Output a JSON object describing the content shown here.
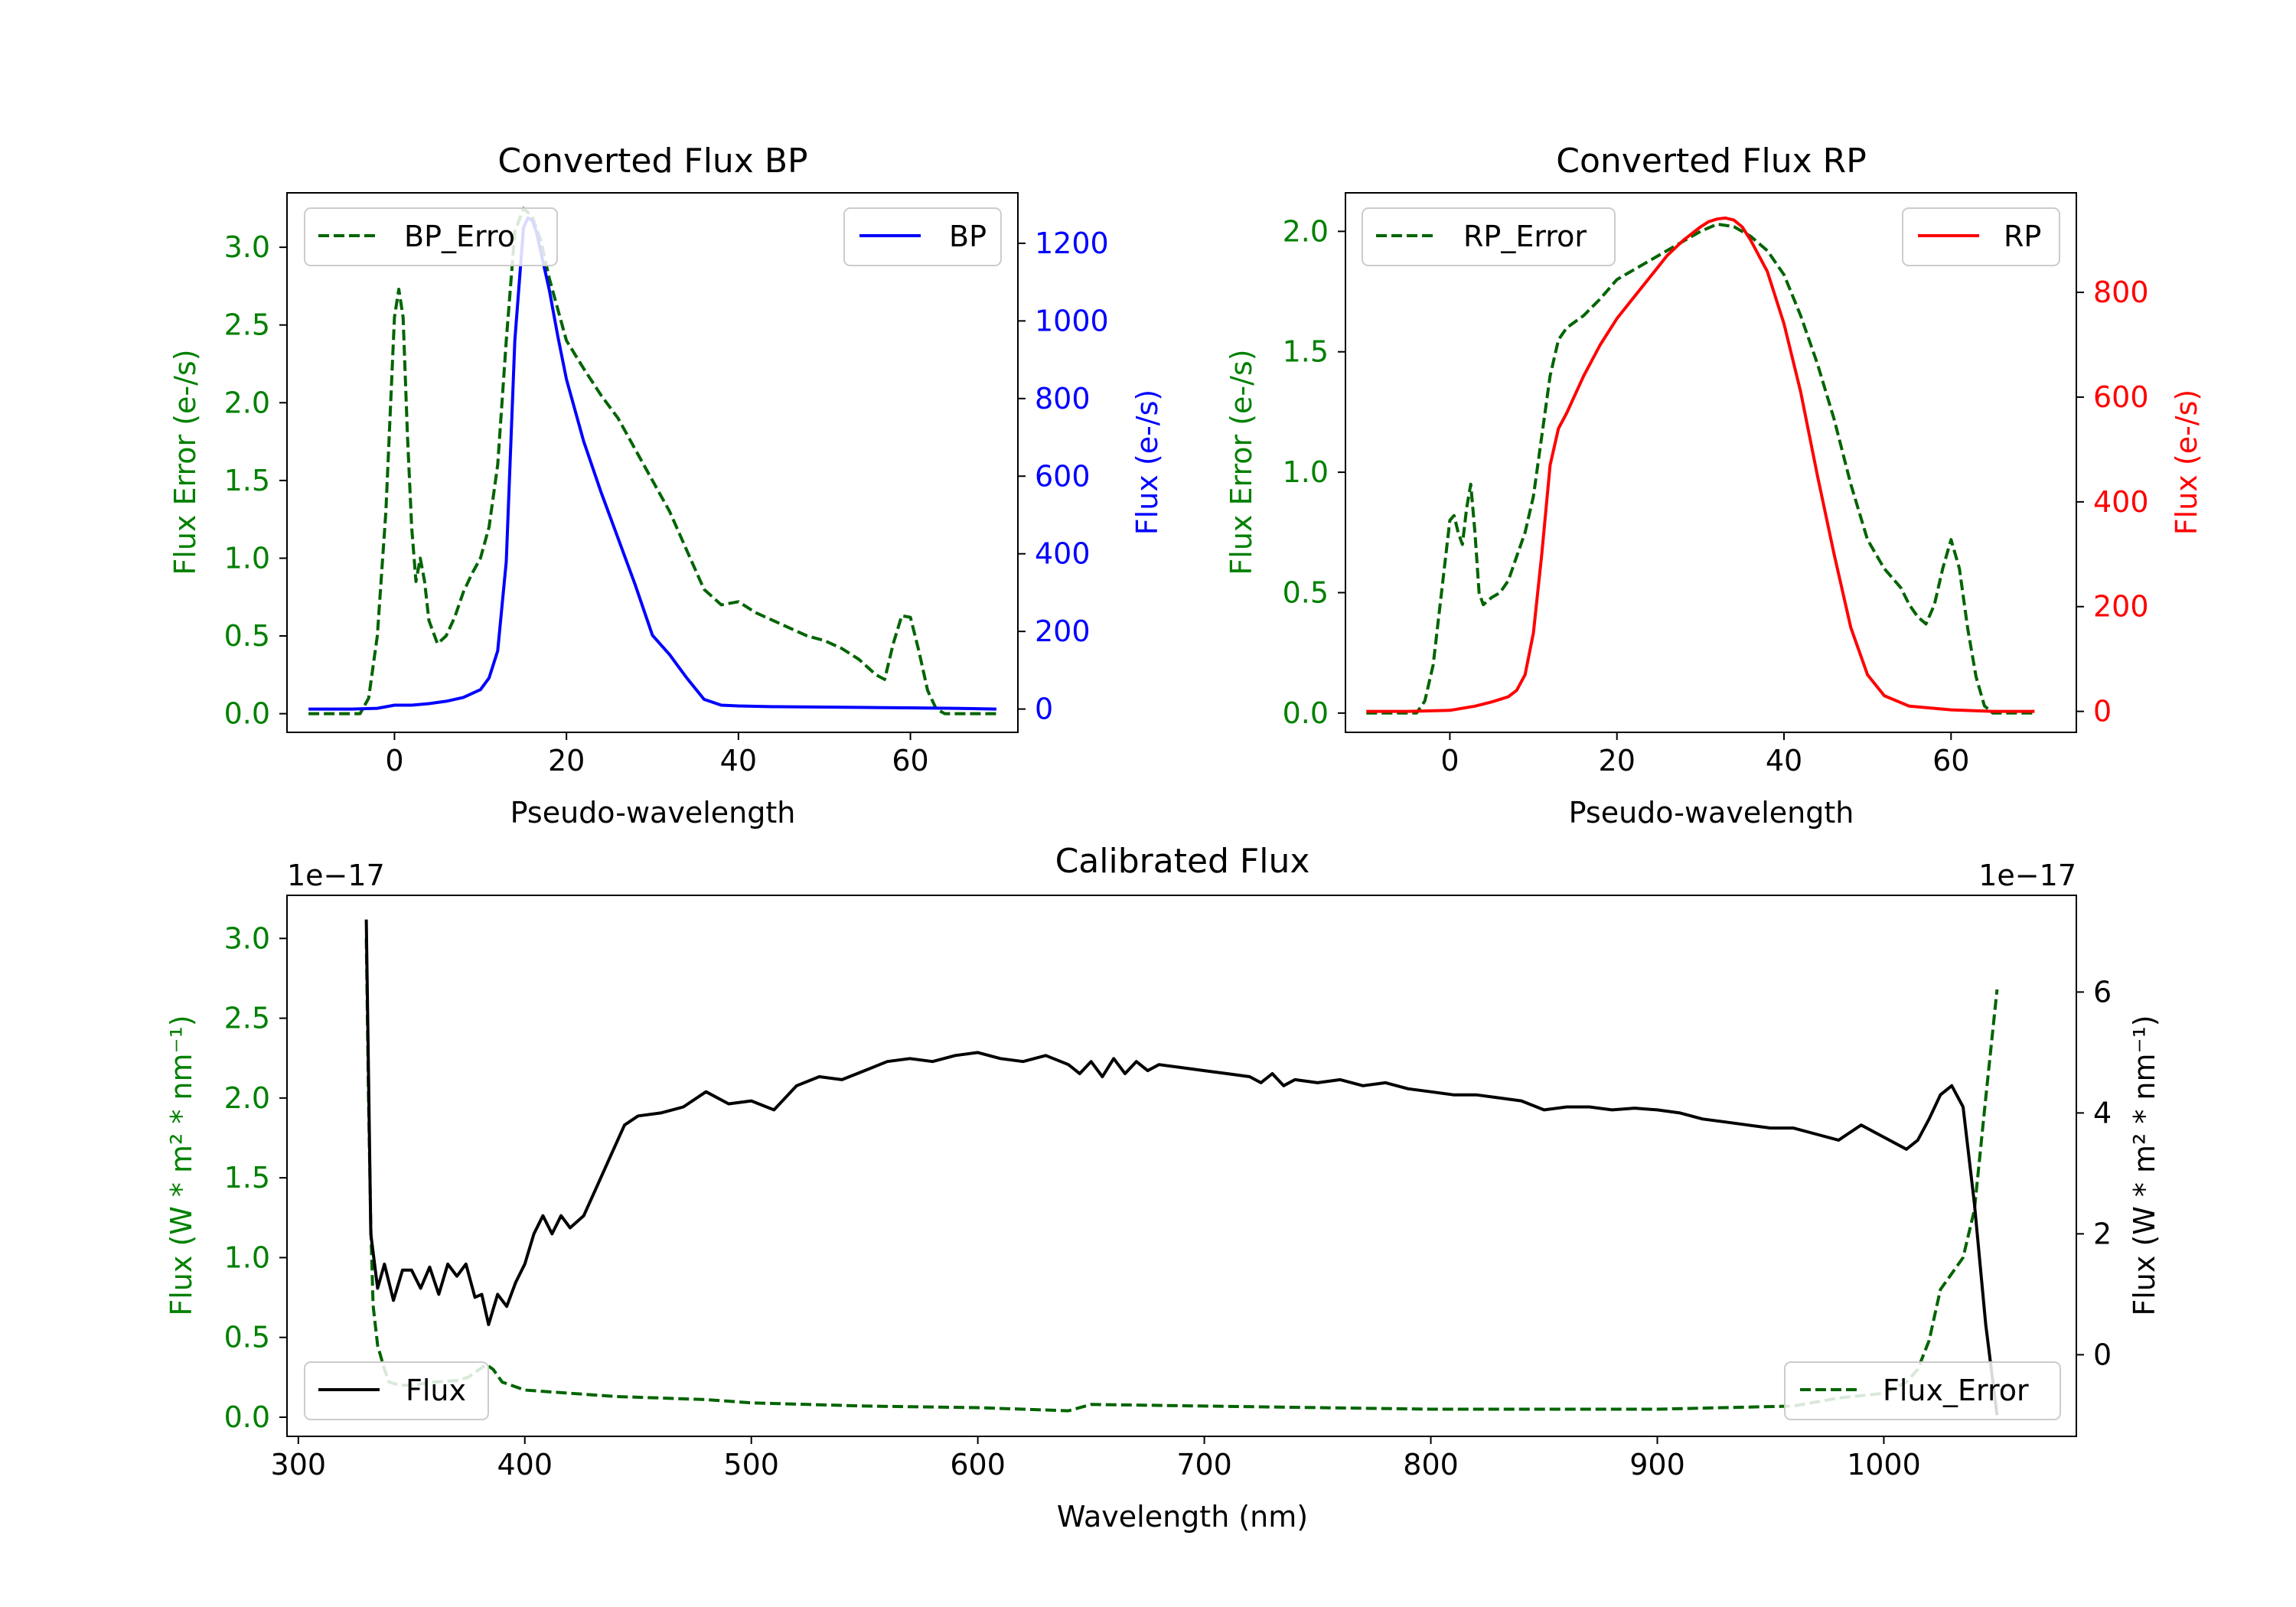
{
  "chart_data": [
    {
      "type": "line",
      "title": "Converted Flux BP",
      "xlabel": "Pseudo-wavelength",
      "ylabel_left": "Flux Error (e-/s)",
      "ylabel_right": "Flux (e-/s)",
      "xlim": [
        -12.5,
        72.5
      ],
      "ylim_left": [
        -0.12,
        3.35
      ],
      "ylim_right": [
        -60,
        1330
      ],
      "xticks": [
        0,
        20,
        40,
        60
      ],
      "yticks_left": [
        0.0,
        0.5,
        1.0,
        1.5,
        2.0,
        2.5,
        3.0
      ],
      "yticks_right": [
        0,
        200,
        400,
        600,
        800,
        1000,
        1200
      ],
      "colors": {
        "left_axis": "#008000",
        "right_axis": "#0000ff",
        "error": "#006400",
        "flux": "#0000ff"
      },
      "legend_left": "BP_Erro",
      "legend_right": "BP",
      "series": [
        {
          "name": "BP_Error",
          "axis": "left",
          "style": "dashed",
          "x": [
            -10,
            -4,
            -3,
            -2,
            -1,
            0,
            0.5,
            1,
            1.5,
            2,
            2.5,
            3,
            3.5,
            4,
            5,
            6,
            7,
            8,
            9,
            10,
            11,
            12,
            13,
            14,
            15,
            16,
            17,
            18,
            19,
            20,
            22,
            24,
            26,
            28,
            30,
            32,
            34,
            36,
            38,
            40,
            42,
            44,
            46,
            48,
            50,
            52,
            54,
            56,
            57,
            58,
            59,
            60,
            61,
            62,
            63,
            64,
            66,
            68,
            70
          ],
          "y": [
            0.0,
            0.0,
            0.1,
            0.5,
            1.3,
            2.55,
            2.73,
            2.55,
            1.8,
            1.2,
            0.85,
            1.0,
            0.85,
            0.6,
            0.45,
            0.5,
            0.62,
            0.78,
            0.9,
            1.0,
            1.2,
            1.6,
            2.4,
            3.1,
            3.25,
            3.2,
            3.05,
            2.8,
            2.6,
            2.4,
            2.22,
            2.05,
            1.9,
            1.7,
            1.5,
            1.3,
            1.05,
            0.8,
            0.7,
            0.72,
            0.65,
            0.6,
            0.55,
            0.5,
            0.47,
            0.42,
            0.35,
            0.25,
            0.22,
            0.45,
            0.63,
            0.62,
            0.4,
            0.15,
            0.03,
            0.0,
            0.0,
            0.0,
            0.0
          ]
        },
        {
          "name": "BP",
          "axis": "right",
          "style": "solid",
          "x": [
            -10,
            -5,
            -2,
            0,
            2,
            4,
            6,
            8,
            10,
            11,
            12,
            13,
            14,
            15,
            15.5,
            16,
            16.5,
            17,
            18,
            19,
            20,
            22,
            24,
            26,
            28,
            30,
            32,
            34,
            36,
            38,
            40,
            44,
            50,
            55,
            60,
            65,
            70
          ],
          "y": [
            0,
            0,
            2,
            10,
            10,
            14,
            20,
            30,
            50,
            80,
            150,
            380,
            950,
            1240,
            1265,
            1260,
            1230,
            1180,
            1080,
            960,
            850,
            690,
            560,
            440,
            320,
            190,
            140,
            80,
            25,
            10,
            8,
            6,
            5,
            4,
            3,
            2,
            0
          ]
        }
      ]
    },
    {
      "type": "line",
      "title": "Converted Flux RP",
      "xlabel": "Pseudo-wavelength",
      "ylabel_left": "Flux Error (e-/s)",
      "ylabel_right": "Flux (e-/s)",
      "xlim": [
        -12.5,
        75
      ],
      "ylim_left": [
        -0.08,
        2.16
      ],
      "ylim_right": [
        -40,
        990
      ],
      "xticks": [
        0,
        20,
        40,
        60
      ],
      "yticks_left": [
        0.0,
        0.5,
        1.0,
        1.5,
        2.0
      ],
      "yticks_right": [
        0,
        200,
        400,
        600,
        800
      ],
      "colors": {
        "left_axis": "#008000",
        "right_axis": "#ff0000",
        "error": "#006400",
        "flux": "#ff0000"
      },
      "legend_left": "RP_Error",
      "legend_right": "RP",
      "series": [
        {
          "name": "RP_Error",
          "axis": "left",
          "style": "dashed",
          "x": [
            -10,
            -4,
            -3,
            -2,
            -1,
            0,
            0.5,
            1,
            1.5,
            2,
            2.5,
            3,
            3.5,
            4,
            5,
            6,
            7,
            8,
            9,
            10,
            11,
            12,
            13,
            14,
            16,
            18,
            20,
            22,
            24,
            26,
            28,
            30,
            32,
            34,
            36,
            38,
            40,
            42,
            44,
            46,
            48,
            50,
            52,
            54,
            55,
            56,
            57,
            58,
            59,
            60,
            61,
            62,
            63,
            64,
            65,
            70
          ],
          "y": [
            0.0,
            0.0,
            0.05,
            0.2,
            0.5,
            0.8,
            0.82,
            0.75,
            0.7,
            0.85,
            0.95,
            0.75,
            0.5,
            0.45,
            0.48,
            0.5,
            0.55,
            0.65,
            0.75,
            0.9,
            1.15,
            1.4,
            1.55,
            1.6,
            1.65,
            1.72,
            1.8,
            1.84,
            1.88,
            1.92,
            1.96,
            2.0,
            2.03,
            2.02,
            1.98,
            1.92,
            1.82,
            1.65,
            1.45,
            1.22,
            0.95,
            0.72,
            0.6,
            0.52,
            0.45,
            0.4,
            0.37,
            0.45,
            0.6,
            0.72,
            0.6,
            0.35,
            0.15,
            0.03,
            0.0,
            0.0
          ]
        },
        {
          "name": "RP",
          "axis": "right",
          "style": "solid",
          "x": [
            -10,
            -5,
            0,
            3,
            5,
            7,
            8,
            9,
            10,
            11,
            12,
            13,
            14,
            16,
            18,
            20,
            22,
            24,
            26,
            28,
            30,
            31,
            32,
            33,
            34,
            35,
            36,
            38,
            40,
            42,
            44,
            46,
            48,
            50,
            52,
            55,
            60,
            65,
            70
          ],
          "y": [
            0,
            0,
            2,
            10,
            18,
            28,
            40,
            70,
            150,
            300,
            470,
            540,
            570,
            640,
            700,
            750,
            790,
            830,
            870,
            900,
            925,
            935,
            940,
            942,
            938,
            925,
            900,
            840,
            740,
            610,
            450,
            300,
            160,
            70,
            30,
            10,
            3,
            0,
            0
          ]
        }
      ]
    },
    {
      "type": "line",
      "title": "Calibrated Flux",
      "xlabel": "Wavelength (nm)",
      "ylabel_left": "Flux (W * m² * nm⁻¹)",
      "ylabel_right": "Flux (W * m² * nm⁻¹)",
      "offset_left": "1e−17",
      "offset_right": "1e−17",
      "xlim": [
        295,
        1085
      ],
      "ylim_left": [
        -0.12,
        3.27
      ],
      "ylim_right": [
        -1.35,
        7.6
      ],
      "xticks": [
        300,
        400,
        500,
        600,
        700,
        800,
        900,
        1000
      ],
      "yticks_left": [
        0.0,
        0.5,
        1.0,
        1.5,
        2.0,
        2.5,
        3.0
      ],
      "yticks_right": [
        0,
        2,
        4,
        6
      ],
      "colors": {
        "left_axis": "#008000",
        "right_axis": "#000000",
        "error": "#006400",
        "flux": "#000000"
      },
      "legend_left": "Flux",
      "legend_right": "Flux_Error",
      "series": [
        {
          "name": "Flux_Error",
          "axis": "left",
          "style": "dashed",
          "x": [
            330,
            331,
            332,
            333,
            335,
            338,
            340,
            345,
            350,
            360,
            370,
            375,
            380,
            383,
            386,
            390,
            400,
            420,
            440,
            460,
            480,
            500,
            550,
            600,
            640,
            650,
            700,
            800,
            900,
            960,
            980,
            1000,
            1010,
            1015,
            1020,
            1025,
            1030,
            1035,
            1040,
            1045,
            1050
          ],
          "y": [
            3.0,
            2.0,
            1.2,
            0.7,
            0.45,
            0.3,
            0.22,
            0.2,
            0.2,
            0.22,
            0.23,
            0.25,
            0.3,
            0.33,
            0.3,
            0.22,
            0.17,
            0.15,
            0.13,
            0.12,
            0.11,
            0.09,
            0.07,
            0.06,
            0.04,
            0.08,
            0.07,
            0.05,
            0.05,
            0.07,
            0.12,
            0.15,
            0.22,
            0.3,
            0.48,
            0.8,
            0.9,
            1.0,
            1.3,
            2.0,
            2.68
          ]
        },
        {
          "name": "Flux",
          "axis": "right",
          "style": "solid",
          "x": [
            330,
            332,
            335,
            338,
            342,
            346,
            350,
            354,
            358,
            362,
            366,
            370,
            374,
            378,
            381,
            384,
            388,
            392,
            396,
            400,
            404,
            408,
            412,
            416,
            420,
            426,
            432,
            438,
            444,
            450,
            460,
            470,
            480,
            490,
            500,
            510,
            520,
            530,
            540,
            550,
            560,
            570,
            580,
            590,
            600,
            610,
            620,
            630,
            640,
            645,
            650,
            655,
            660,
            665,
            670,
            675,
            680,
            690,
            700,
            710,
            720,
            725,
            730,
            735,
            740,
            750,
            760,
            770,
            780,
            790,
            800,
            810,
            820,
            830,
            840,
            850,
            860,
            870,
            880,
            890,
            900,
            910,
            920,
            930,
            940,
            950,
            960,
            970,
            980,
            990,
            1000,
            1010,
            1015,
            1020,
            1025,
            1030,
            1035,
            1040,
            1045,
            1050
          ],
          "y": [
            7.2,
            2.0,
            1.1,
            1.5,
            0.9,
            1.4,
            1.4,
            1.1,
            1.45,
            1.0,
            1.5,
            1.3,
            1.5,
            0.95,
            1.0,
            0.5,
            1.0,
            0.8,
            1.2,
            1.5,
            2.0,
            2.3,
            2.0,
            2.3,
            2.1,
            2.3,
            2.8,
            3.3,
            3.8,
            3.95,
            4.0,
            4.1,
            4.35,
            4.15,
            4.2,
            4.05,
            4.45,
            4.6,
            4.55,
            4.7,
            4.85,
            4.9,
            4.85,
            4.95,
            5.0,
            4.9,
            4.85,
            4.95,
            4.8,
            4.65,
            4.85,
            4.6,
            4.9,
            4.65,
            4.85,
            4.7,
            4.8,
            4.75,
            4.7,
            4.65,
            4.6,
            4.5,
            4.65,
            4.45,
            4.55,
            4.5,
            4.55,
            4.45,
            4.5,
            4.4,
            4.35,
            4.3,
            4.3,
            4.25,
            4.2,
            4.05,
            4.1,
            4.1,
            4.05,
            4.08,
            4.05,
            4.0,
            3.9,
            3.85,
            3.8,
            3.75,
            3.75,
            3.65,
            3.55,
            3.8,
            3.6,
            3.4,
            3.55,
            3.9,
            4.3,
            4.45,
            4.1,
            2.5,
            0.5,
            -1.0
          ]
        }
      ]
    }
  ]
}
